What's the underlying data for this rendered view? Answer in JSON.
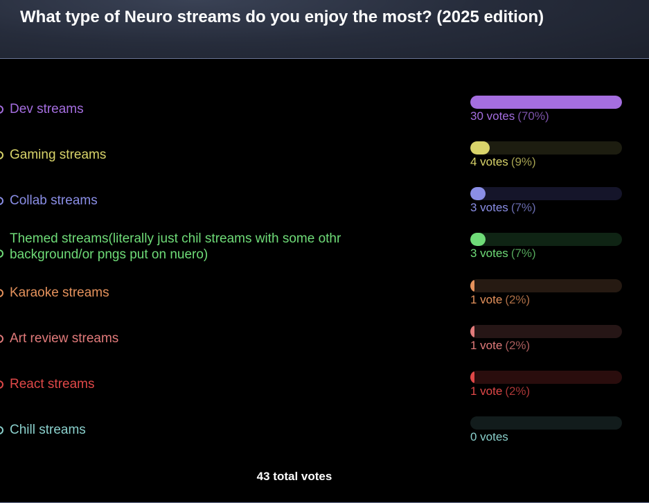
{
  "poll": {
    "title": "What type of Neuro streams do you enjoy the most? (2025 edition)",
    "options": [
      {
        "label": "Dev streams",
        "votes_text": "30 votes",
        "pct_text": "(70%)",
        "share": 0.7,
        "color": "#a56ee0",
        "track": "#1c1530"
      },
      {
        "label": "Gaming streams",
        "votes_text": "4 votes",
        "pct_text": "(9%)",
        "share": 0.09,
        "color": "#d9d46a",
        "track": "#1d1d10"
      },
      {
        "label": "Collab streams",
        "votes_text": "3 votes",
        "pct_text": "(7%)",
        "share": 0.07,
        "color": "#8a8ee6",
        "track": "#15152a"
      },
      {
        "label": "Themed streams(literally just chil streams with some othr background/or pngs put on nuero)",
        "votes_text": "3 votes",
        "pct_text": "(7%)",
        "share": 0.07,
        "color": "#6fdc78",
        "track": "#0f2414"
      },
      {
        "label": "Karaoke streams",
        "votes_text": "1 vote",
        "pct_text": "(2%)",
        "share": 0.02,
        "color": "#e5925c",
        "track": "#261a12"
      },
      {
        "label": "Art review streams",
        "votes_text": "1 vote",
        "pct_text": "(2%)",
        "share": 0.02,
        "color": "#e27b7b",
        "track": "#261616"
      },
      {
        "label": "React streams",
        "votes_text": "1 vote",
        "pct_text": "(2%)",
        "share": 0.02,
        "color": "#e04848",
        "track": "#2a0d0d"
      },
      {
        "label": "Chill streams",
        "votes_text": "0 votes",
        "pct_text": "",
        "share": 0.0,
        "color": "#8ad0cc",
        "track": "#121c1c"
      }
    ],
    "total_text": "43 total votes"
  }
}
